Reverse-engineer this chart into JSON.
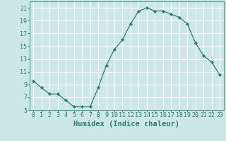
{
  "x": [
    0,
    1,
    2,
    3,
    4,
    5,
    6,
    7,
    8,
    9,
    10,
    11,
    12,
    13,
    14,
    15,
    16,
    17,
    18,
    19,
    20,
    21,
    22,
    23
  ],
  "y": [
    9.5,
    8.5,
    7.5,
    7.5,
    6.5,
    5.5,
    5.5,
    5.5,
    8.5,
    12.0,
    14.5,
    16.0,
    18.5,
    20.5,
    21.0,
    20.5,
    20.5,
    20.0,
    19.5,
    18.5,
    15.5,
    13.5,
    12.5,
    10.5
  ],
  "line_color": "#2e7d6b",
  "marker": "D",
  "marker_size": 2.2,
  "bg_color": "#cce8e6",
  "grid_color": "#ffffff",
  "xlabel": "Humidex (Indice chaleur)",
  "xlim": [
    -0.5,
    23.5
  ],
  "ylim": [
    5,
    22
  ],
  "yticks": [
    5,
    7,
    9,
    11,
    13,
    15,
    17,
    19,
    21
  ],
  "xticks": [
    0,
    1,
    2,
    3,
    4,
    5,
    6,
    7,
    8,
    9,
    10,
    11,
    12,
    13,
    14,
    15,
    16,
    17,
    18,
    19,
    20,
    21,
    22,
    23
  ],
  "xlabel_fontsize": 7.5,
  "tick_fontsize": 6.0,
  "spine_color": "#4a9a8a",
  "tick_color": "#2e7d6b"
}
